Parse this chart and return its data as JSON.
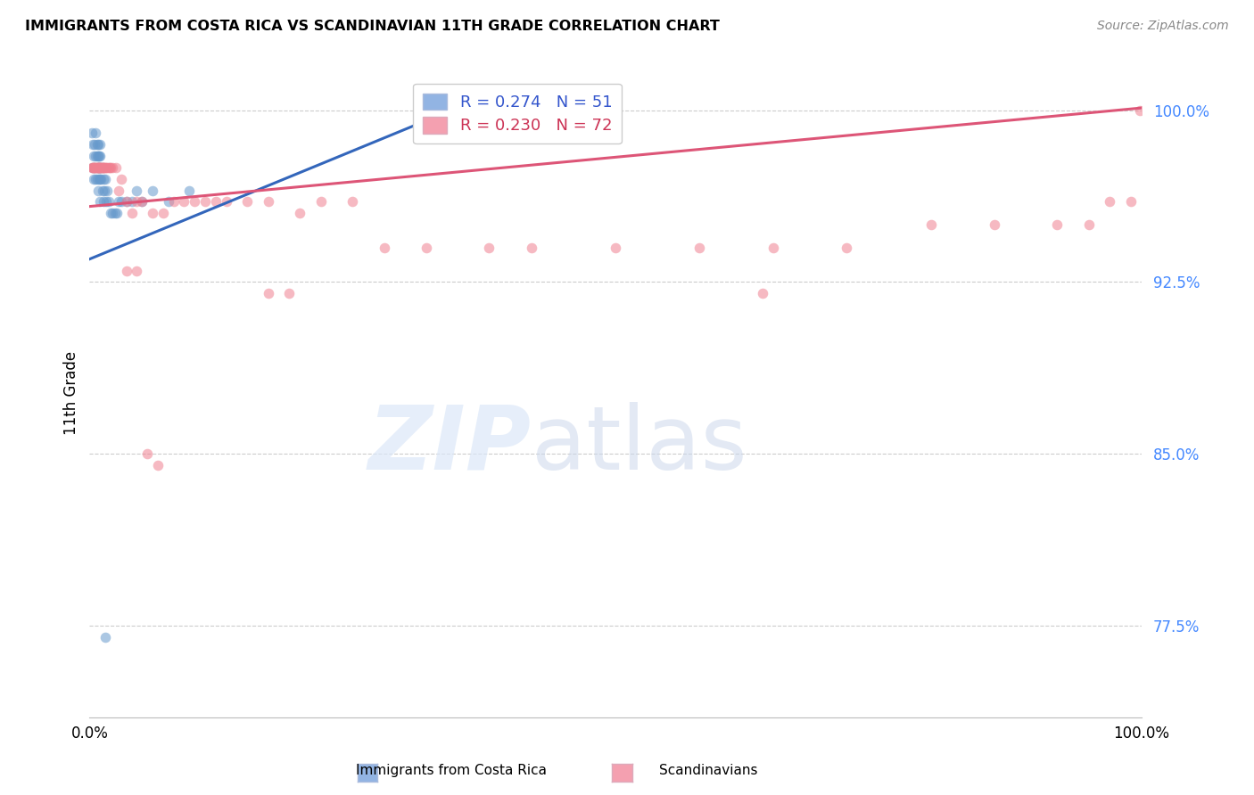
{
  "title": "IMMIGRANTS FROM COSTA RICA VS SCANDINAVIAN 11TH GRADE CORRELATION CHART",
  "source": "Source: ZipAtlas.com",
  "ylabel": "11th Grade",
  "ytick_labels": [
    "100.0%",
    "92.5%",
    "85.0%",
    "77.5%"
  ],
  "ytick_values": [
    1.0,
    0.925,
    0.85,
    0.775
  ],
  "xmin": 0.0,
  "xmax": 1.0,
  "ymin": 0.735,
  "ymax": 1.018,
  "legend1_label": "R = 0.274   N = 51",
  "legend2_label": "R = 0.230   N = 72",
  "legend1_color": "#92b4e3",
  "legend2_color": "#f4a0b0",
  "blue_scatter_x": [
    0.002,
    0.003,
    0.003,
    0.004,
    0.004,
    0.005,
    0.005,
    0.006,
    0.006,
    0.006,
    0.007,
    0.007,
    0.007,
    0.007,
    0.008,
    0.008,
    0.008,
    0.008,
    0.009,
    0.009,
    0.009,
    0.01,
    0.01,
    0.01,
    0.01,
    0.01,
    0.011,
    0.011,
    0.012,
    0.012,
    0.013,
    0.013,
    0.014,
    0.015,
    0.016,
    0.017,
    0.018,
    0.02,
    0.022,
    0.024,
    0.026,
    0.028,
    0.03,
    0.035,
    0.04,
    0.045,
    0.05,
    0.06,
    0.075,
    0.095,
    0.015
  ],
  "blue_scatter_y": [
    0.99,
    0.985,
    0.975,
    0.98,
    0.97,
    0.985,
    0.975,
    0.99,
    0.98,
    0.97,
    0.985,
    0.98,
    0.975,
    0.97,
    0.985,
    0.98,
    0.975,
    0.965,
    0.98,
    0.975,
    0.97,
    0.985,
    0.98,
    0.975,
    0.97,
    0.96,
    0.975,
    0.97,
    0.975,
    0.965,
    0.97,
    0.96,
    0.965,
    0.97,
    0.96,
    0.965,
    0.96,
    0.955,
    0.955,
    0.955,
    0.955,
    0.96,
    0.96,
    0.96,
    0.96,
    0.965,
    0.96,
    0.965,
    0.96,
    0.965,
    0.77
  ],
  "pink_scatter_x": [
    0.002,
    0.003,
    0.003,
    0.004,
    0.005,
    0.005,
    0.006,
    0.006,
    0.007,
    0.007,
    0.008,
    0.008,
    0.009,
    0.009,
    0.01,
    0.01,
    0.011,
    0.011,
    0.012,
    0.012,
    0.013,
    0.013,
    0.014,
    0.015,
    0.016,
    0.017,
    0.018,
    0.019,
    0.02,
    0.022,
    0.025,
    0.028,
    0.03,
    0.035,
    0.04,
    0.045,
    0.05,
    0.06,
    0.07,
    0.08,
    0.09,
    0.1,
    0.11,
    0.12,
    0.13,
    0.15,
    0.17,
    0.2,
    0.22,
    0.25,
    0.28,
    0.32,
    0.38,
    0.42,
    0.5,
    0.58,
    0.65,
    0.72,
    0.8,
    0.86,
    0.92,
    0.95,
    0.97,
    0.99,
    0.035,
    0.045,
    0.055,
    0.065,
    0.17,
    0.19,
    0.64,
    0.999
  ],
  "pink_scatter_y": [
    0.975,
    0.975,
    0.975,
    0.975,
    0.975,
    0.975,
    0.975,
    0.975,
    0.975,
    0.975,
    0.975,
    0.975,
    0.975,
    0.975,
    0.975,
    0.975,
    0.975,
    0.975,
    0.975,
    0.975,
    0.975,
    0.975,
    0.975,
    0.975,
    0.975,
    0.975,
    0.975,
    0.975,
    0.975,
    0.975,
    0.975,
    0.965,
    0.97,
    0.96,
    0.955,
    0.96,
    0.96,
    0.955,
    0.955,
    0.96,
    0.96,
    0.96,
    0.96,
    0.96,
    0.96,
    0.96,
    0.96,
    0.955,
    0.96,
    0.96,
    0.94,
    0.94,
    0.94,
    0.94,
    0.94,
    0.94,
    0.94,
    0.94,
    0.95,
    0.95,
    0.95,
    0.95,
    0.96,
    0.96,
    0.93,
    0.93,
    0.85,
    0.845,
    0.92,
    0.92,
    0.92,
    1.0
  ],
  "blue_trend_x": [
    0.0,
    0.36
  ],
  "blue_trend_y": [
    0.935,
    1.003
  ],
  "pink_trend_x": [
    0.0,
    1.0
  ],
  "pink_trend_y": [
    0.958,
    1.001
  ],
  "grid_color": "#cccccc",
  "scatter_alpha": 0.55,
  "scatter_size": 70,
  "blue_color": "#6699cc",
  "pink_color": "#f08090",
  "blue_line_color": "#3366bb",
  "pink_line_color": "#dd5577"
}
